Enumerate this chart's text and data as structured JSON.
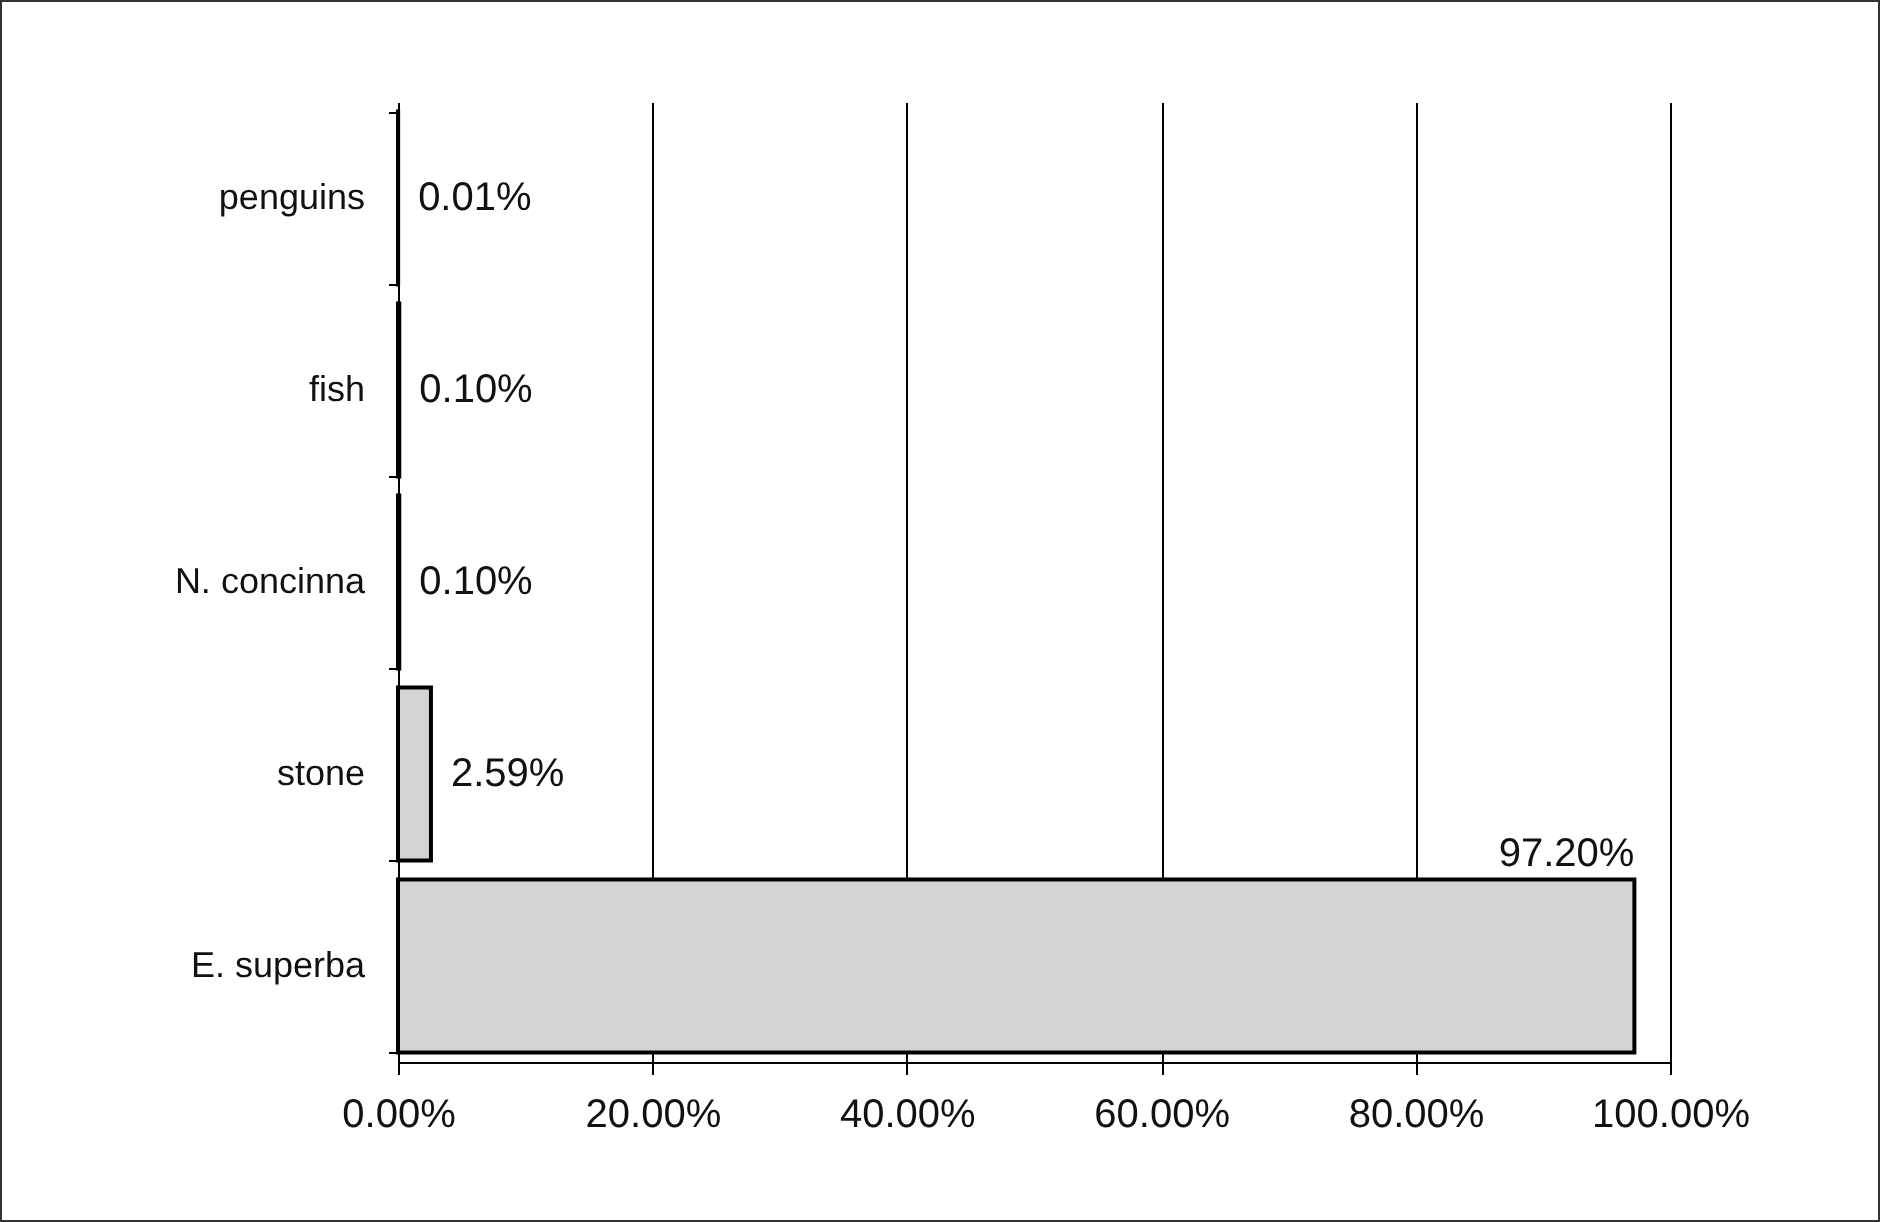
{
  "chart_data": {
    "type": "bar",
    "orientation": "horizontal",
    "categories": [
      "penguins",
      "fish",
      "N. concinna",
      "stone",
      "E. superba"
    ],
    "values": [
      0.01,
      0.1,
      0.1,
      2.59,
      97.2
    ],
    "value_labels": [
      "0.01%",
      "0.10%",
      "0.10%",
      "2.59%",
      "97.20%"
    ],
    "color": "#d4d4d4",
    "xlim": [
      0,
      100
    ],
    "xticks": [
      {
        "value": 0,
        "label": "0.00%"
      },
      {
        "value": 20,
        "label": "20.00%"
      },
      {
        "value": 40,
        "label": "40.00%"
      },
      {
        "value": 60,
        "label": "60.00%"
      },
      {
        "value": 80,
        "label": "80.00%"
      },
      {
        "value": 100,
        "label": "100.00%"
      }
    ],
    "grid": "x"
  }
}
